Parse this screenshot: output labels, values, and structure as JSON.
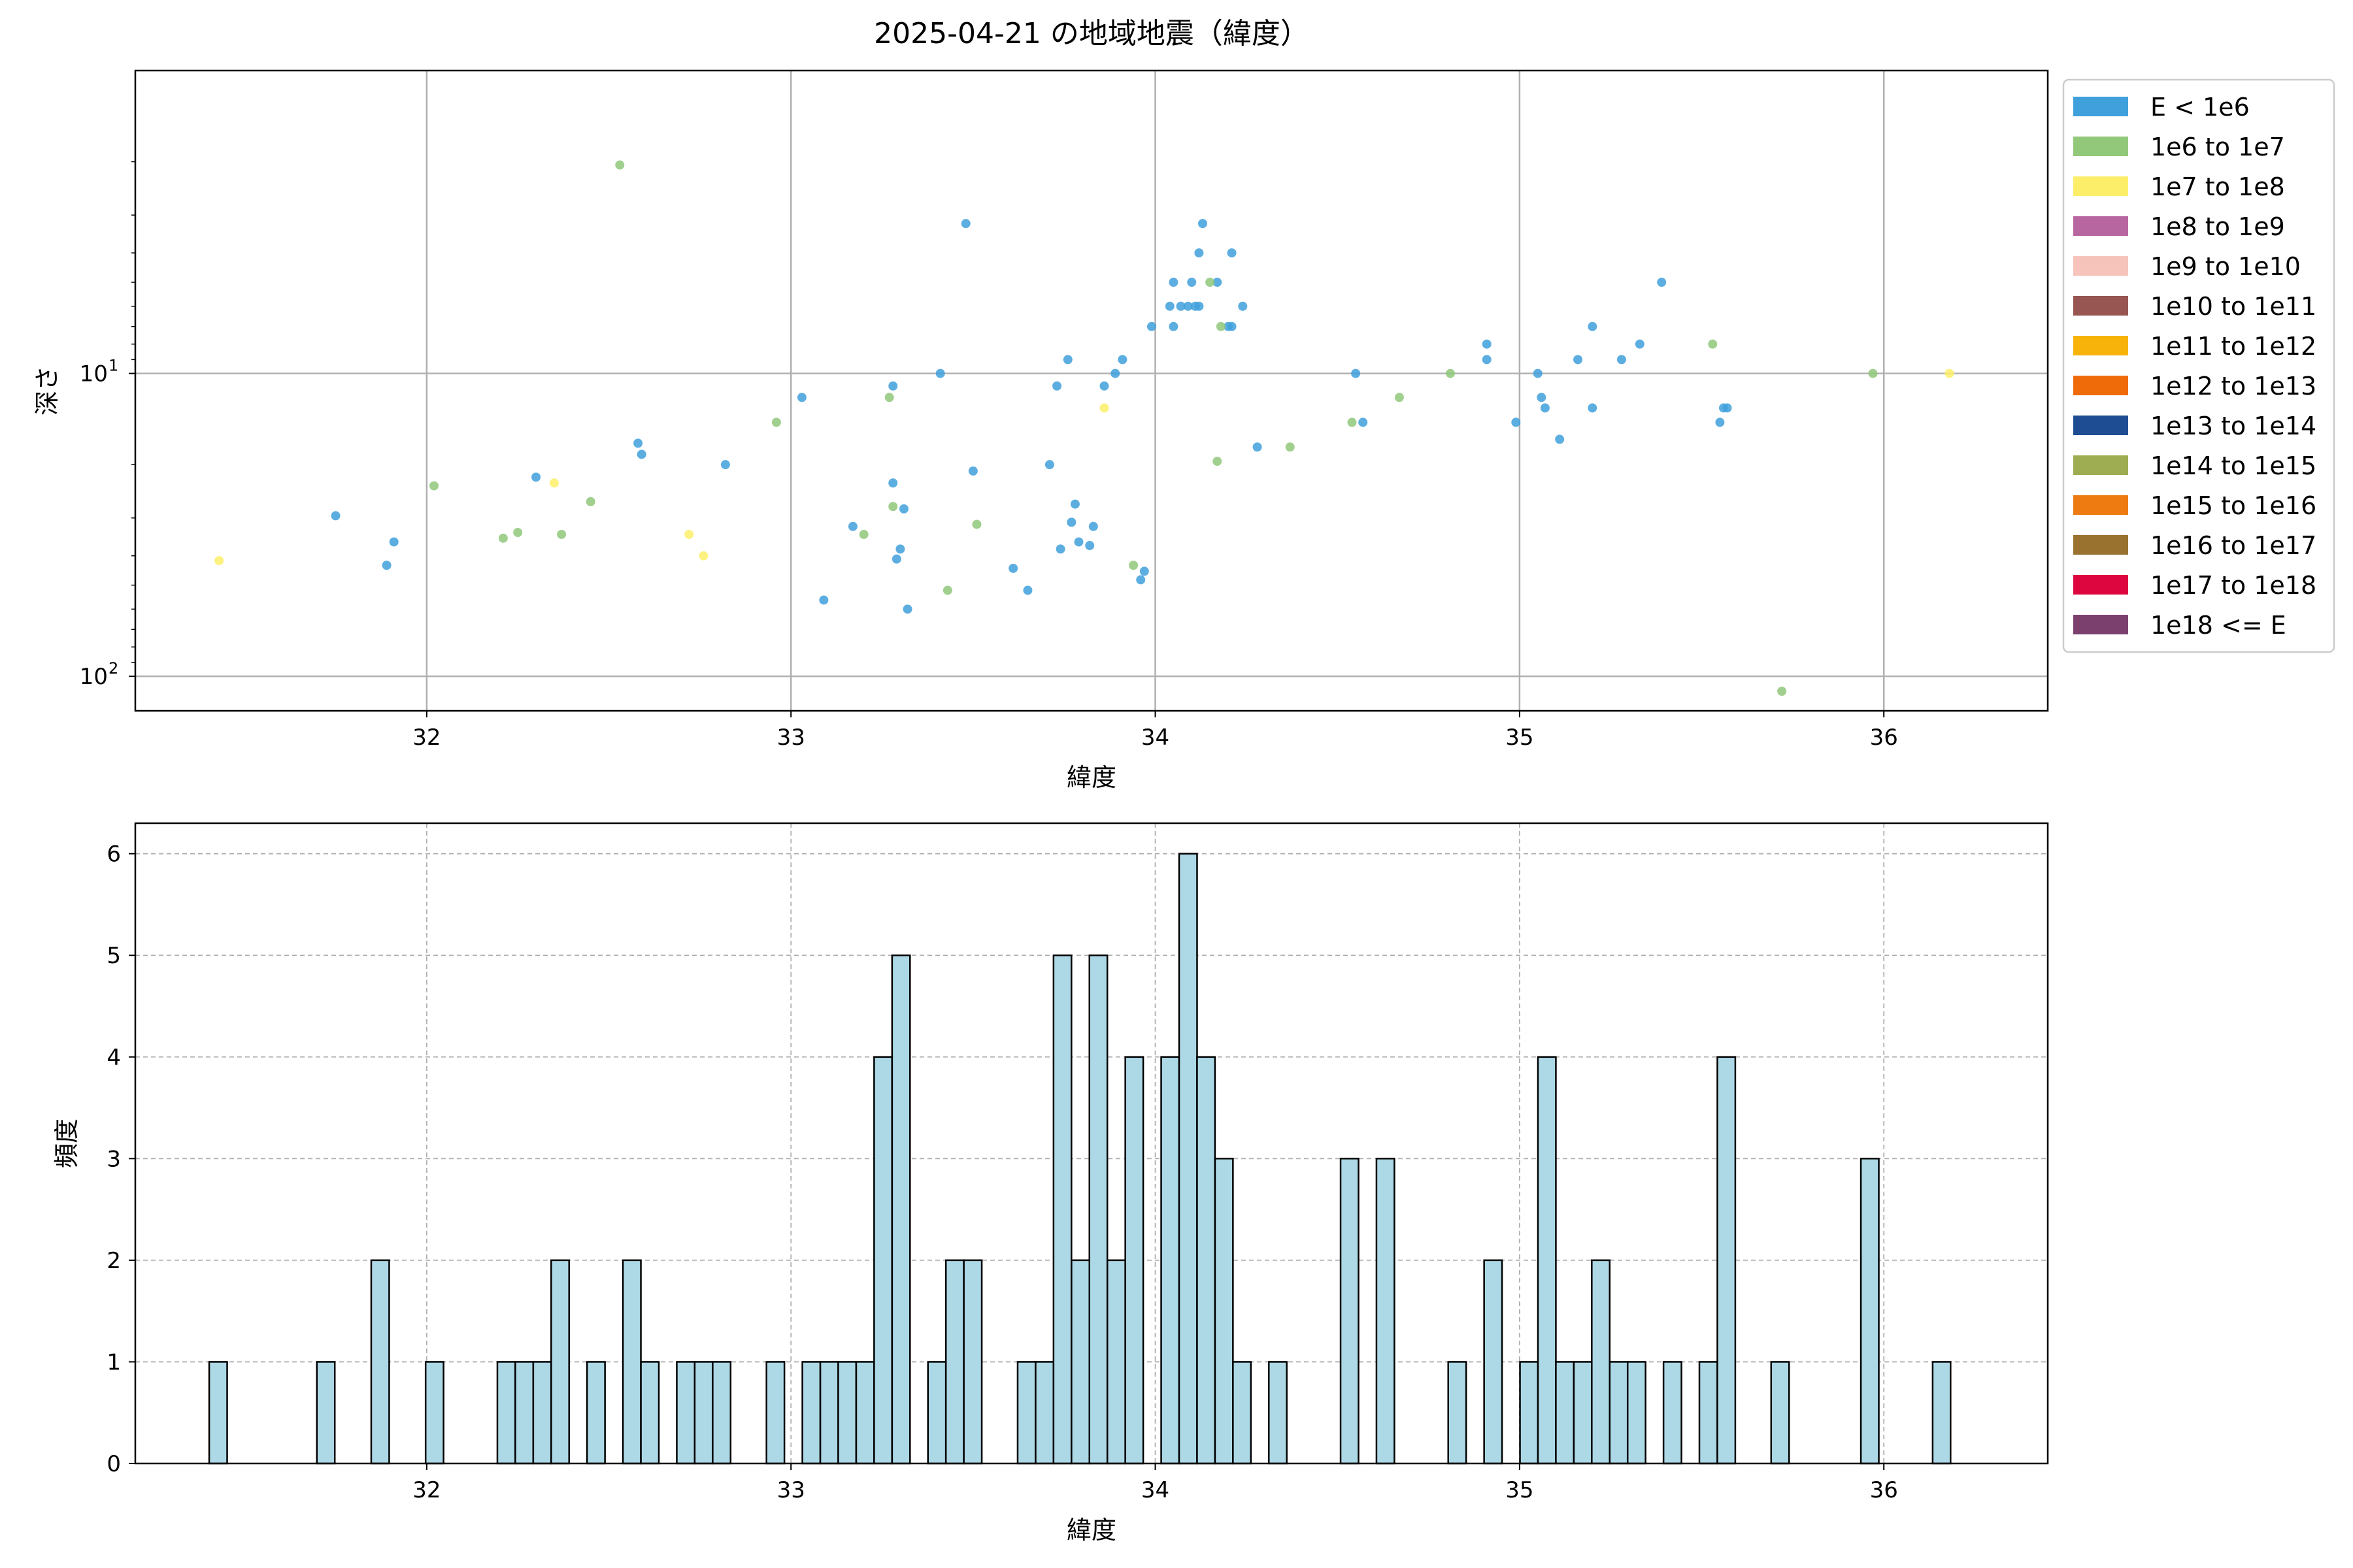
{
  "chart_data": [
    {
      "type": "scatter",
      "title": "2025-04-21 の地域地震（緯度）",
      "xlabel": "緯度",
      "ylabel": "深さ",
      "xlim": [
        31.2,
        36.45
      ],
      "ylim": [
        1,
        130
      ],
      "y_scale": "log",
      "y_inverted": true,
      "grid": true,
      "x_ticks": [
        32,
        33,
        34,
        35,
        36
      ],
      "y_ticks": [
        {
          "value": 10,
          "label": "10",
          "exp": "1"
        },
        {
          "value": 100,
          "label": "10",
          "exp": "2"
        }
      ],
      "legend_position": "outside-right",
      "legend": [
        {
          "label": "E < 1e6",
          "color": "#3fa0dc"
        },
        {
          "label": "1e6 to 1e7",
          "color": "#91c87a"
        },
        {
          "label": "1e7 to 1e8",
          "color": "#fdee6a"
        },
        {
          "label": "1e8 to 1e9",
          "color": "#b8669f"
        },
        {
          "label": "1e9 to 1e10",
          "color": "#f6c4bb"
        },
        {
          "label": "1e10 to 1e11",
          "color": "#975651"
        },
        {
          "label": "1e11 to 1e12",
          "color": "#f7b309"
        },
        {
          "label": "1e12 to 1e13",
          "color": "#ef6b0a"
        },
        {
          "label": "1e13 to 1e14",
          "color": "#1e4d94"
        },
        {
          "label": "1e14 to 1e15",
          "color": "#9ead51"
        },
        {
          "label": "1e15 to 1e16",
          "color": "#ed7b12"
        },
        {
          "label": "1e16 to 1e17",
          "color": "#98722e"
        },
        {
          "label": "1e17 to 1e18",
          "color": "#dd063f"
        },
        {
          "label": "1e18 <= E",
          "color": "#7b406e"
        }
      ],
      "series": [
        {
          "name": "E < 1e6",
          "color": "#3fa0dc",
          "points": [
            [
              31.75,
              29.5
            ],
            [
              31.89,
              43
            ],
            [
              31.91,
              36
            ],
            [
              32.3,
              22
            ],
            [
              32.58,
              17
            ],
            [
              32.59,
              18.5
            ],
            [
              32.82,
              20
            ],
            [
              33.03,
              12
            ],
            [
              33.09,
              56
            ],
            [
              33.17,
              32
            ],
            [
              33.28,
              11
            ],
            [
              33.28,
              23
            ],
            [
              33.29,
              41
            ],
            [
              33.3,
              38
            ],
            [
              33.31,
              28
            ],
            [
              33.32,
              60
            ],
            [
              33.41,
              10
            ],
            [
              33.48,
              3.2
            ],
            [
              33.5,
              21
            ],
            [
              33.61,
              44
            ],
            [
              33.65,
              52
            ],
            [
              33.71,
              20
            ],
            [
              33.73,
              11
            ],
            [
              33.74,
              38
            ],
            [
              33.76,
              9
            ],
            [
              33.77,
              31
            ],
            [
              33.78,
              27
            ],
            [
              33.79,
              36
            ],
            [
              33.82,
              37
            ],
            [
              33.83,
              32
            ],
            [
              33.86,
              11
            ],
            [
              33.89,
              10
            ],
            [
              33.91,
              9
            ],
            [
              33.96,
              48
            ],
            [
              33.97,
              45
            ],
            [
              33.99,
              7
            ],
            [
              34.04,
              6
            ],
            [
              34.05,
              5
            ],
            [
              34.05,
              7
            ],
            [
              34.07,
              6
            ],
            [
              34.09,
              6
            ],
            [
              34.1,
              5
            ],
            [
              34.11,
              6
            ],
            [
              34.12,
              6
            ],
            [
              34.12,
              4
            ],
            [
              34.13,
              3.2
            ],
            [
              34.17,
              5
            ],
            [
              34.2,
              7
            ],
            [
              34.21,
              4
            ],
            [
              34.21,
              7
            ],
            [
              34.24,
              6
            ],
            [
              34.28,
              17.5
            ],
            [
              34.55,
              10
            ],
            [
              34.57,
              14.5
            ],
            [
              34.91,
              8
            ],
            [
              34.91,
              9
            ],
            [
              34.99,
              14.5
            ],
            [
              35.05,
              10
            ],
            [
              35.06,
              12
            ],
            [
              35.07,
              13
            ],
            [
              35.11,
              16.5
            ],
            [
              35.16,
              9
            ],
            [
              35.2,
              13
            ],
            [
              35.2,
              7
            ],
            [
              35.28,
              9
            ],
            [
              35.33,
              8
            ],
            [
              35.39,
              5
            ],
            [
              35.55,
              14.5
            ],
            [
              35.56,
              13
            ],
            [
              35.57,
              13
            ]
          ]
        },
        {
          "name": "1e6 to 1e7",
          "color": "#91c87a",
          "points": [
            [
              32.02,
              23.5
            ],
            [
              32.21,
              35
            ],
            [
              32.25,
              33.5
            ],
            [
              32.37,
              34
            ],
            [
              32.45,
              26.5
            ],
            [
              32.53,
              2.05
            ],
            [
              32.96,
              14.5
            ],
            [
              33.27,
              12
            ],
            [
              33.28,
              27.5
            ],
            [
              33.2,
              34
            ],
            [
              33.43,
              52
            ],
            [
              33.51,
              31.5
            ],
            [
              33.94,
              43
            ],
            [
              34.15,
              5
            ],
            [
              34.17,
              19.5
            ],
            [
              34.18,
              7
            ],
            [
              34.37,
              17.5
            ],
            [
              34.54,
              14.5
            ],
            [
              34.67,
              12
            ],
            [
              34.81,
              10
            ],
            [
              35.53,
              8
            ],
            [
              35.72,
              112
            ],
            [
              35.97,
              10
            ]
          ]
        },
        {
          "name": "1e7 to 1e8",
          "color": "#fdee6a",
          "points": [
            [
              31.43,
              41.5
            ],
            [
              32.35,
              23
            ],
            [
              32.72,
              34
            ],
            [
              32.76,
              40
            ],
            [
              33.86,
              13
            ],
            [
              36.18,
              10
            ]
          ]
        }
      ]
    },
    {
      "type": "bar",
      "title": "",
      "xlabel": "緯度",
      "ylabel": "頻度",
      "xlim": [
        31.2,
        36.45
      ],
      "ylim": [
        0,
        6.3
      ],
      "x_ticks": [
        32,
        33,
        34,
        35,
        36
      ],
      "y_ticks": [
        0,
        1,
        2,
        3,
        4,
        5,
        6
      ],
      "grid": "dashed",
      "bar_color": "#add8e6",
      "edge_color": "#000000",
      "bin_width": 0.04925,
      "bins": [
        {
          "x": 31.4275,
          "value": 1
        },
        {
          "x": 31.723,
          "value": 1
        },
        {
          "x": 31.8723,
          "value": 2
        },
        {
          "x": 32.0216,
          "value": 1
        },
        {
          "x": 32.2186,
          "value": 1
        },
        {
          "x": 32.2678,
          "value": 1
        },
        {
          "x": 32.3171,
          "value": 1
        },
        {
          "x": 32.3663,
          "value": 2
        },
        {
          "x": 32.4648,
          "value": 1
        },
        {
          "x": 32.5633,
          "value": 2
        },
        {
          "x": 32.6126,
          "value": 1
        },
        {
          "x": 32.7111,
          "value": 1
        },
        {
          "x": 32.7603,
          "value": 1
        },
        {
          "x": 32.8096,
          "value": 1
        },
        {
          "x": 32.9573,
          "value": 1
        },
        {
          "x": 33.0558,
          "value": 1
        },
        {
          "x": 33.1051,
          "value": 1
        },
        {
          "x": 33.1543,
          "value": 1
        },
        {
          "x": 33.2036,
          "value": 1
        },
        {
          "x": 33.2528,
          "value": 4
        },
        {
          "x": 33.3021,
          "value": 5
        },
        {
          "x": 33.4006,
          "value": 1
        },
        {
          "x": 33.4498,
          "value": 2
        },
        {
          "x": 33.4991,
          "value": 2
        },
        {
          "x": 33.6468,
          "value": 1
        },
        {
          "x": 33.6961,
          "value": 1
        },
        {
          "x": 33.7453,
          "value": 5
        },
        {
          "x": 33.7946,
          "value": 2
        },
        {
          "x": 33.8438,
          "value": 5
        },
        {
          "x": 33.8931,
          "value": 2
        },
        {
          "x": 33.9423,
          "value": 4
        },
        {
          "x": 34.0408,
          "value": 4
        },
        {
          "x": 34.0901,
          "value": 6
        },
        {
          "x": 34.1393,
          "value": 4
        },
        {
          "x": 34.1886,
          "value": 3
        },
        {
          "x": 34.2378,
          "value": 1
        },
        {
          "x": 34.3363,
          "value": 1
        },
        {
          "x": 34.5333,
          "value": 3
        },
        {
          "x": 34.6318,
          "value": 3
        },
        {
          "x": 34.8288,
          "value": 1
        },
        {
          "x": 34.9273,
          "value": 2
        },
        {
          "x": 35.0258,
          "value": 1
        },
        {
          "x": 35.0751,
          "value": 4
        },
        {
          "x": 35.1243,
          "value": 1
        },
        {
          "x": 35.1736,
          "value": 1
        },
        {
          "x": 35.2228,
          "value": 2
        },
        {
          "x": 35.2721,
          "value": 1
        },
        {
          "x": 35.3213,
          "value": 1
        },
        {
          "x": 35.4198,
          "value": 1
        },
        {
          "x": 35.5183,
          "value": 1
        },
        {
          "x": 35.5676,
          "value": 4
        },
        {
          "x": 35.7153,
          "value": 1
        },
        {
          "x": 35.9616,
          "value": 3
        },
        {
          "x": 36.1586,
          "value": 1
        }
      ]
    }
  ]
}
